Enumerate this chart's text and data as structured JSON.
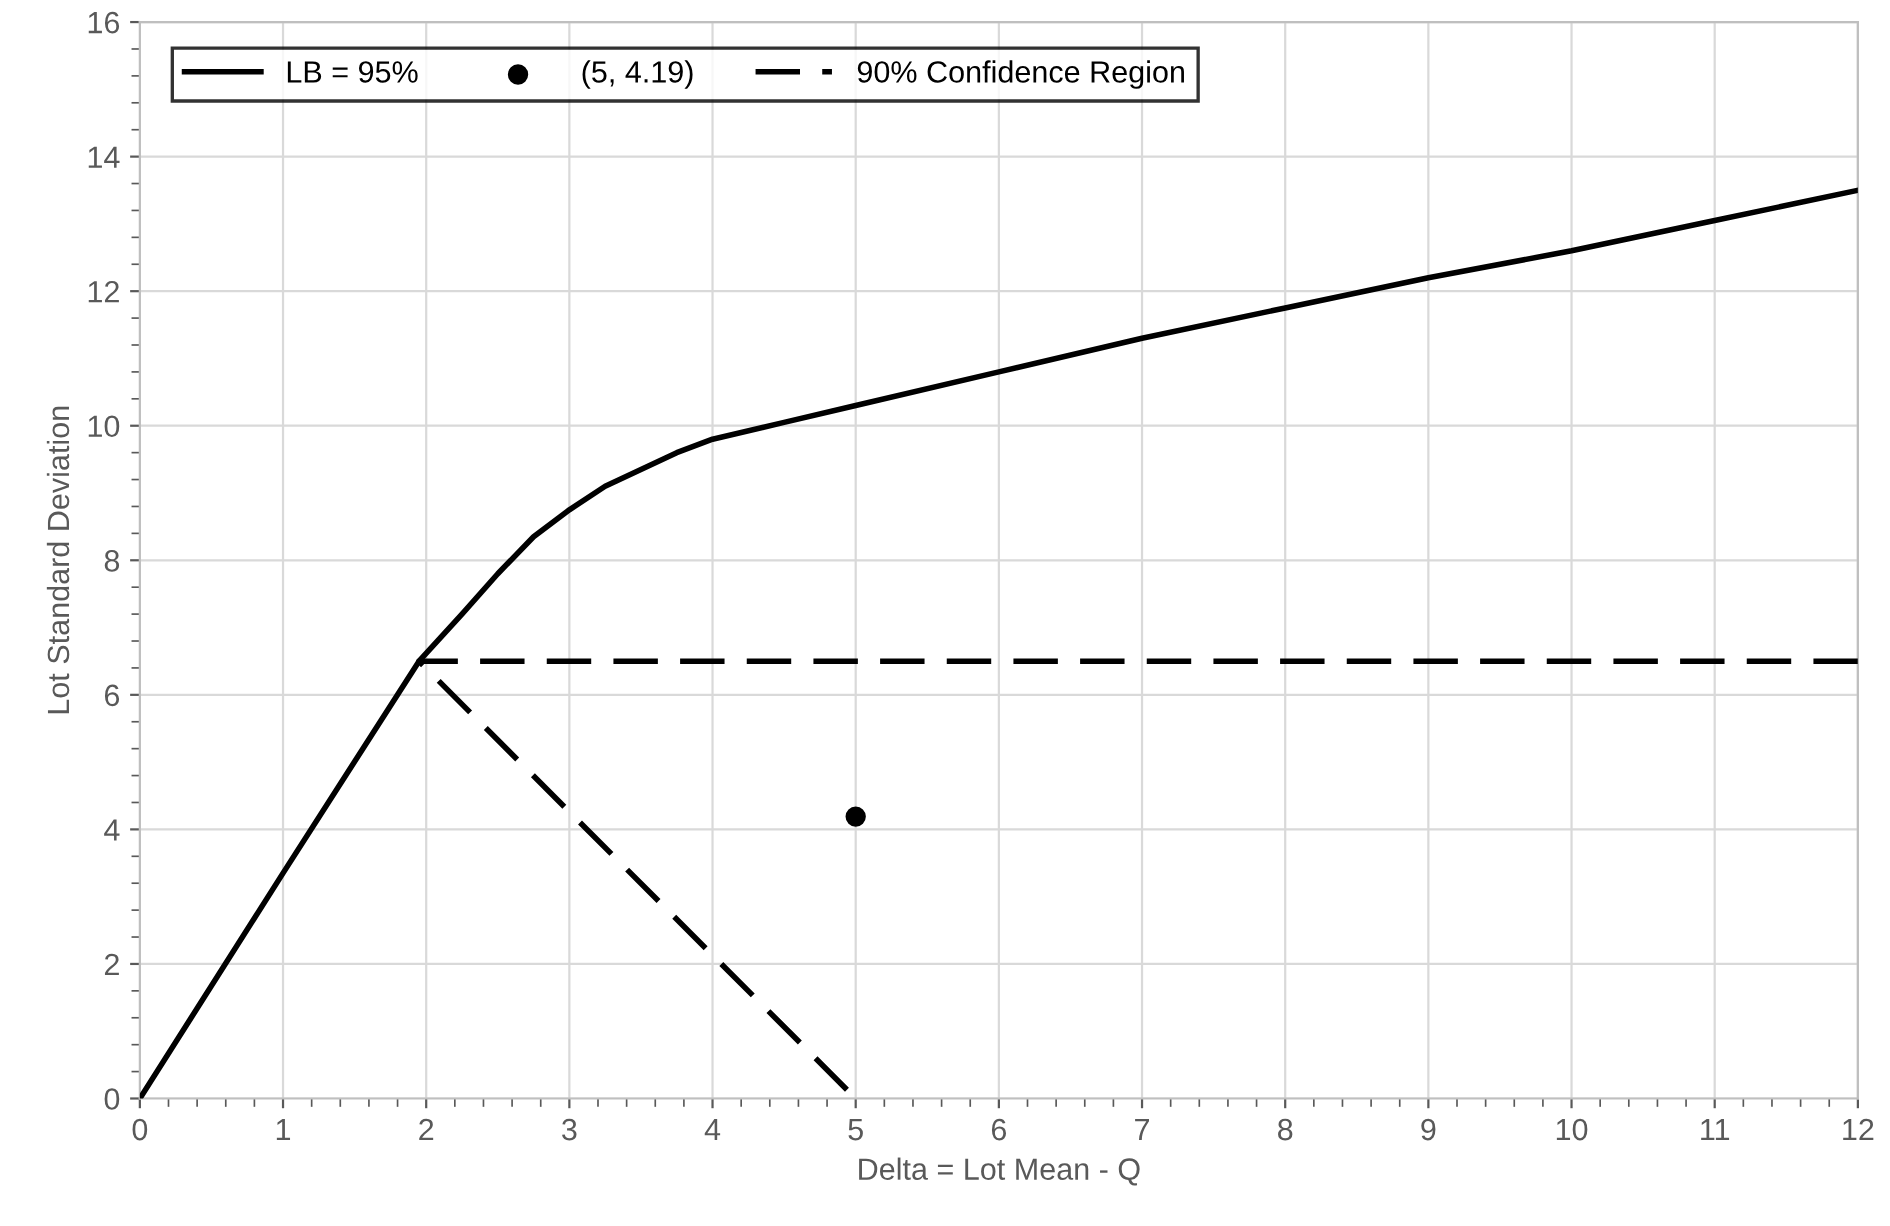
{
  "chart_data": {
    "type": "line",
    "xlabel": "Delta = Lot Mean - Q",
    "ylabel": "Lot Standard Deviation",
    "series": [
      {
        "name": "LB = 95%",
        "color": "#000000",
        "line_style": "solid",
        "marker": "none",
        "x": [
          0,
          1,
          1.95,
          2.1,
          2.25,
          2.5,
          2.75,
          3,
          3.25,
          3.5,
          3.75,
          4,
          4.5,
          5,
          6,
          7,
          8,
          9,
          10,
          11,
          12
        ],
        "values": [
          0,
          3.35,
          6.5,
          6.85,
          7.2,
          7.8,
          8.35,
          8.75,
          9.1,
          9.35,
          9.6,
          9.8,
          10.05,
          10.3,
          10.8,
          11.3,
          11.75,
          12.2,
          12.6,
          13.05,
          13.5
        ]
      },
      {
        "name": "(5, 4.19)",
        "type": "scatter",
        "color": "#000000",
        "marker": "circle",
        "x": [
          5
        ],
        "values": [
          4.19
        ]
      },
      {
        "name": "90% Confidence Region",
        "color": "#000000",
        "line_style": "dashed",
        "marker": "none",
        "x": [
          12,
          1.95,
          5
        ],
        "values": [
          6.5,
          6.5,
          0
        ]
      }
    ],
    "xlim": [
      0,
      12
    ],
    "xticks": [
      0,
      1,
      2,
      3,
      4,
      5,
      6,
      7,
      8,
      9,
      10,
      11,
      12
    ],
    "ylim": [
      0,
      16
    ],
    "yticks": [
      0,
      2,
      4,
      6,
      8,
      10,
      12,
      14,
      16
    ],
    "grid": true,
    "legend": "top left"
  }
}
